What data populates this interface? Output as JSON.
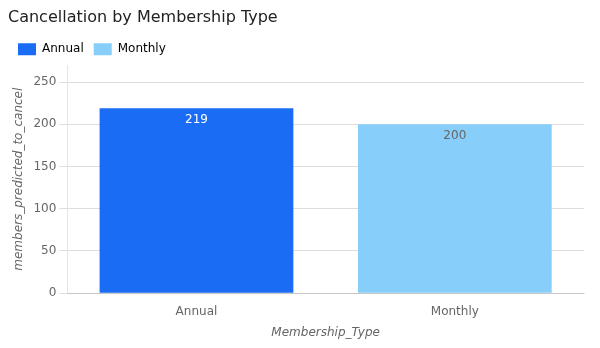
{
  "chart_data": {
    "type": "bar",
    "title": "Cancellation by Membership Type",
    "categories": [
      "Annual",
      "Monthly"
    ],
    "values": [
      219,
      200
    ],
    "colors": [
      "#1B6CF5",
      "#87CEFA"
    ],
    "xlabel": "Membership_Type",
    "ylabel": "members_predicted_to_cancel",
    "ylim": [
      0,
      270
    ],
    "yticks": [
      0,
      50,
      100,
      150,
      200,
      250
    ],
    "grid": true,
    "legend": "upper left",
    "data_labels": true
  }
}
